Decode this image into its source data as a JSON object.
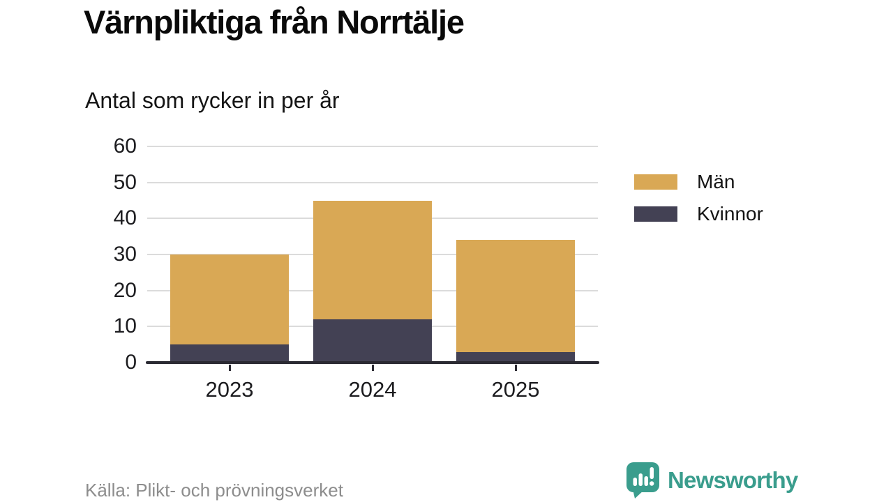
{
  "chart_data": {
    "type": "bar",
    "stacked": true,
    "title": "Värnpliktiga från Norrtälje",
    "subtitle": "Antal som rycker in per år",
    "categories": [
      "2023",
      "2024",
      "2025"
    ],
    "series": [
      {
        "name": "Män",
        "color": "#D9A855",
        "values": [
          25,
          33,
          31
        ]
      },
      {
        "name": "Kvinnor",
        "color": "#434154",
        "values": [
          5,
          12,
          3
        ]
      }
    ],
    "stack_order_bottom_to_top": [
      "Kvinnor",
      "Män"
    ],
    "stack_totals": [
      30,
      45,
      34
    ],
    "xlabel": "",
    "ylabel": "",
    "ylim": [
      0,
      60
    ],
    "yticks": [
      0,
      10,
      20,
      30,
      40,
      50,
      60
    ],
    "grid": "horizontal-gridlines",
    "legend_position": "right"
  },
  "footer": {
    "source": "Källa: Plikt- och prövningsverket"
  },
  "branding": {
    "logo_text": "Newsworthy",
    "logo_color": "#3A9D8D",
    "logo_icon": "speech-bubble-bar-chart-icon"
  }
}
